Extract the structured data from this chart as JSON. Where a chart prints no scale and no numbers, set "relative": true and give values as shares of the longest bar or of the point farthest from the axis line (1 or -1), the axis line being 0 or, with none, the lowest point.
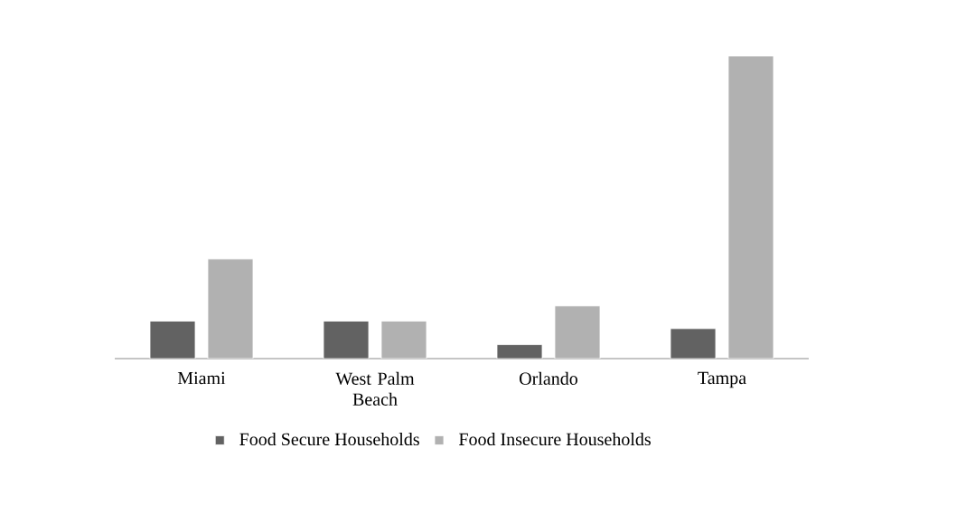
{
  "chart_data": {
    "type": "bar",
    "relative": true,
    "legend": "bottom",
    "categories": [
      "Miami",
      "West Palm Beach",
      "Orlando",
      "Tampa"
    ],
    "series": [
      {
        "name": "Food Secure Households",
        "color": "#626262",
        "values": [
          0.124,
          0.124,
          0.046,
          0.099
        ]
      },
      {
        "name": "Food Insecure Households",
        "color": "#b1b1b1",
        "values": [
          0.329,
          0.124,
          0.174,
          1
        ]
      }
    ]
  }
}
